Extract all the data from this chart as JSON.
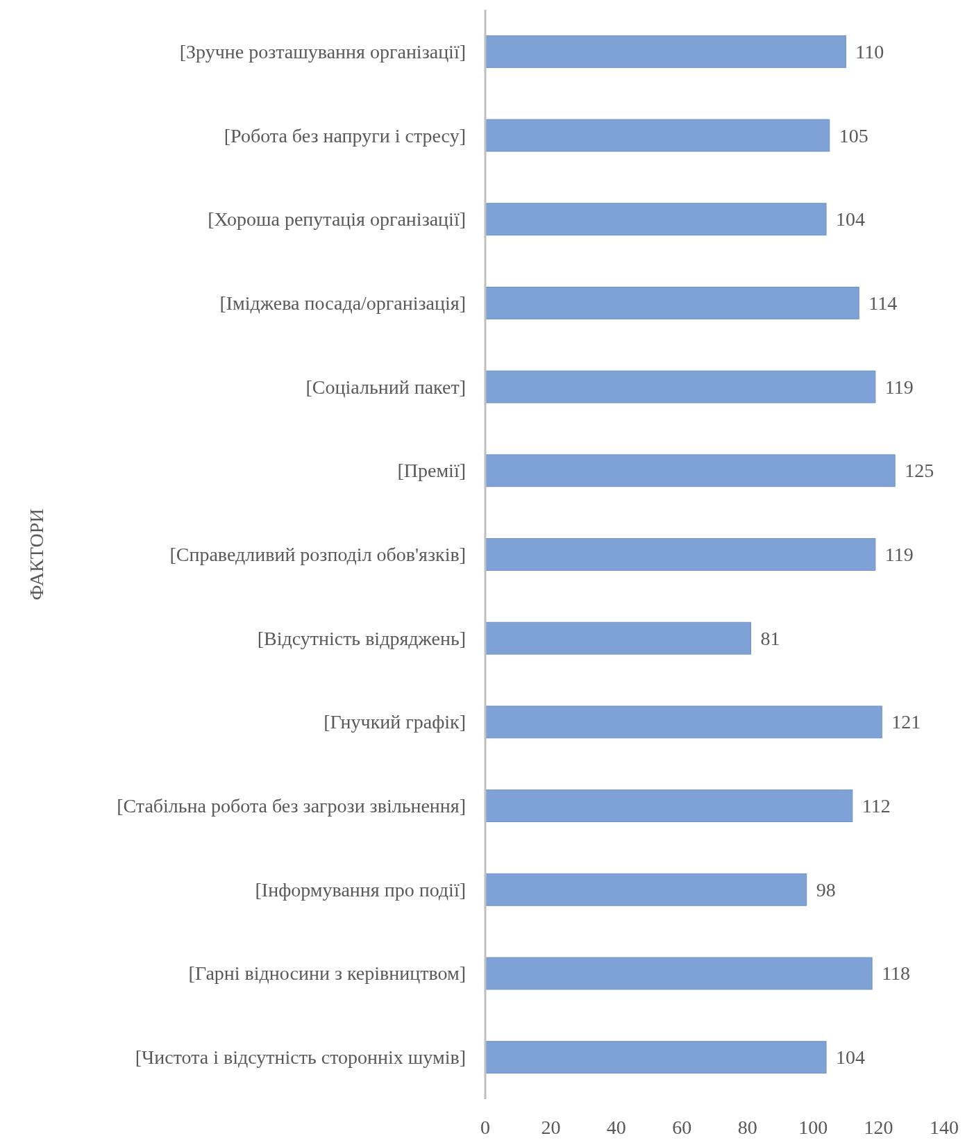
{
  "chart_data": {
    "type": "bar",
    "orientation": "horizontal",
    "ylabel": "ФАКТОРИ",
    "categories": [
      "[Зручне розташування організації]",
      "[Робота без напруги і стресу]",
      "[Хороша репутація організації]",
      "[Іміджева посада/організація]",
      "[Соціальний пакет]",
      "[Премії]",
      "[Справедливий розподіл обов'язків]",
      "[Відсутність відряджень]",
      "[Гнучкий графік]",
      "[Стабільна робота без загрози звільнення]",
      "[Інформування про події]",
      "[Гарні відносини з керівництвом]",
      "[Чистота і відсутність сторонніх шумів]"
    ],
    "values": [
      110,
      105,
      104,
      114,
      119,
      125,
      119,
      81,
      121,
      112,
      98,
      118,
      104
    ],
    "color": "#7ea2d6",
    "xlim": [
      0,
      140
    ],
    "xticks": [
      0,
      20,
      40,
      60,
      80,
      100,
      120,
      140
    ],
    "data_labels": true
  }
}
